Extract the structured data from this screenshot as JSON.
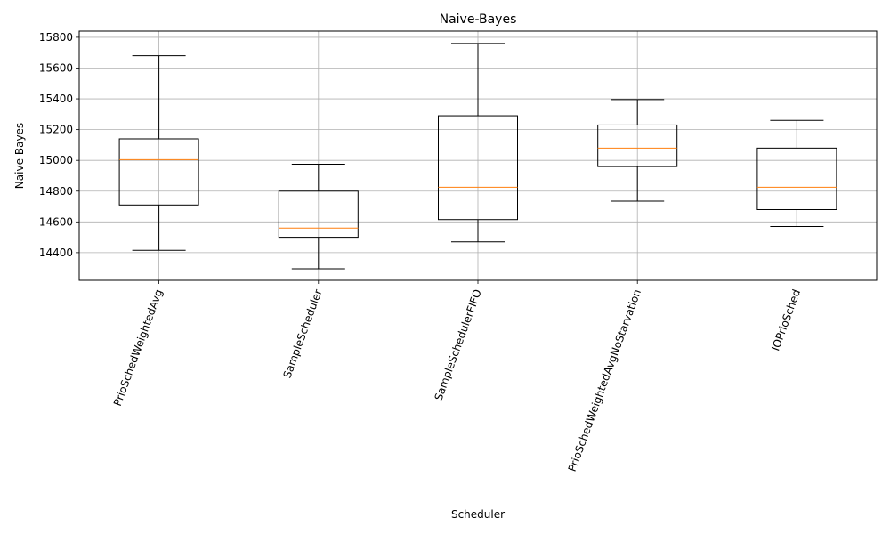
{
  "chart_data": {
    "type": "box",
    "title": "Naive-Bayes",
    "xlabel": "Scheduler",
    "ylabel": "Naive-Bayes",
    "ylim": [
      14220,
      15840
    ],
    "yticks": [
      14400,
      14600,
      14800,
      15000,
      15200,
      15400,
      15600,
      15800
    ],
    "ytick_labels": [
      "14400",
      "14600",
      "14800",
      "15000",
      "15200",
      "15400",
      "15600",
      "15800"
    ],
    "grid": true,
    "xtick_rotation_deg": 70,
    "categories": [
      "PrioSchedWeightedAvg",
      "SampleScheduler",
      "SampleSchedulerFIFO",
      "PrioSchedWeightedAvgNoStarvation",
      "IOPrioSched"
    ],
    "boxes": [
      {
        "whisker_low": 14415,
        "q1": 14710,
        "median": 15005,
        "q3": 15140,
        "whisker_high": 15680
      },
      {
        "whisker_low": 14295,
        "q1": 14500,
        "median": 14560,
        "q3": 14800,
        "whisker_high": 14975
      },
      {
        "whisker_low": 14470,
        "q1": 14615,
        "median": 14825,
        "q3": 15290,
        "whisker_high": 15760
      },
      {
        "whisker_low": 14735,
        "q1": 14960,
        "median": 15080,
        "q3": 15230,
        "whisker_high": 15395
      },
      {
        "whisker_low": 14570,
        "q1": 14680,
        "median": 14825,
        "q3": 15080,
        "whisker_high": 15260
      }
    ],
    "colors": {
      "box": "#000000",
      "median": "#ff7f0e",
      "grid": "#b0b0b0"
    }
  }
}
